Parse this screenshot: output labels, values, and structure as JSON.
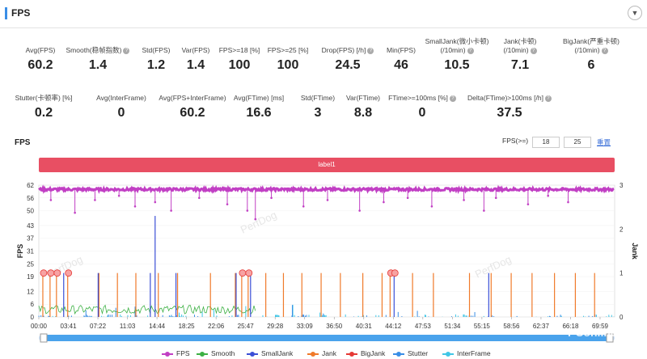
{
  "header": {
    "title": "FPS",
    "collapse_icon": "chevron-down-icon"
  },
  "stats_row1": [
    {
      "label": "Avg(FPS)",
      "value": "60.2",
      "help": false
    },
    {
      "label": "Smooth(稳帧指数)",
      "value": "1.4",
      "help": true
    },
    {
      "label": "Std(FPS)",
      "value": "1.2",
      "help": false
    },
    {
      "label": "Var(FPS)",
      "value": "1.4",
      "help": false
    },
    {
      "label": "FPS>=18 [%]",
      "value": "100",
      "help": false
    },
    {
      "label": "FPS>=25 [%]",
      "value": "100",
      "help": false
    },
    {
      "label": "Drop(FPS) [/h]",
      "value": "24.5",
      "help": true
    },
    {
      "label": "Min(FPS)",
      "value": "46",
      "help": false
    },
    {
      "label": "SmallJank(微小卡顿)",
      "label2": "(/10min)",
      "value": "10.5",
      "help": true
    },
    {
      "label": "Jank(卡顿)",
      "label2": "(/10min)",
      "value": "7.1",
      "help": true
    },
    {
      "label": "BigJank(严重卡顿)",
      "label2": "(/10min)",
      "value": "6",
      "help": true
    }
  ],
  "stats_row2": [
    {
      "label": "Stutter(卡顿率) [%]",
      "value": "0.2",
      "help": false
    },
    {
      "label": "Avg(InterFrame)",
      "value": "0",
      "help": false
    },
    {
      "label": "Avg(FPS+InterFrame)",
      "value": "60.2",
      "help": false
    },
    {
      "label": "Avg(FTime) [ms]",
      "value": "16.6",
      "help": false
    },
    {
      "label": "Std(FTime)",
      "value": "3",
      "help": false
    },
    {
      "label": "Var(FTime)",
      "value": "8.8",
      "help": false
    },
    {
      "label": "FTime>=100ms [%]",
      "value": "0",
      "help": true
    },
    {
      "label": "Delta(FTime)>100ms [/h]",
      "value": "37.5",
      "help": true
    }
  ],
  "chart_controls": {
    "title": "FPS",
    "fps_label": "FPS(>=)",
    "threshold1": "18",
    "threshold2": "25",
    "reset_label": "重置"
  },
  "label_bar": {
    "text": "label1",
    "color": "#e84f63"
  },
  "colors": {
    "fps": "#c13fc4",
    "smooth": "#3cb043",
    "smalljank": "#3b4fd6",
    "jank": "#f07a2a",
    "bigjank": "#e53935",
    "stutter": "#3a8ee6",
    "interframe": "#41c6e6"
  },
  "chart_data": {
    "type": "line",
    "left_axis": {
      "label": "FPS",
      "ticks": [
        "62",
        "56",
        "50",
        "43",
        "37",
        "31",
        "25",
        "19",
        "12",
        "6",
        "0"
      ],
      "ylim": [
        0,
        62
      ]
    },
    "right_axis": {
      "label": "Jank",
      "ticks": [
        "3",
        "2",
        "1",
        "0"
      ],
      "ylim": [
        0,
        3
      ]
    },
    "x_ticks": [
      "00:00",
      "03:41",
      "07:22",
      "11:03",
      "14:44",
      "18:25",
      "22:06",
      "25:47",
      "29:28",
      "33:09",
      "36:50",
      "40:31",
      "44:12",
      "47:53",
      "51:34",
      "55:15",
      "58:56",
      "62:37",
      "66:18",
      "69:59"
    ],
    "series": [
      {
        "name": "FPS",
        "typical": 60,
        "dips": [
          [
            1.5,
            55
          ],
          [
            4.5,
            49
          ],
          [
            7,
            55
          ],
          [
            10,
            57
          ],
          [
            12,
            52
          ],
          [
            14.5,
            54
          ],
          [
            16.5,
            50
          ],
          [
            20,
            56
          ],
          [
            23.5,
            53
          ],
          [
            26,
            50
          ],
          [
            27,
            46
          ],
          [
            29,
            56
          ],
          [
            33,
            52
          ],
          [
            36,
            55
          ],
          [
            40,
            50
          ],
          [
            43,
            54
          ],
          [
            46,
            56
          ],
          [
            49,
            52
          ],
          [
            53,
            55
          ],
          [
            55.5,
            50
          ],
          [
            57,
            56
          ],
          [
            61,
            53
          ],
          [
            63.5,
            57
          ],
          [
            66,
            54
          ]
        ]
      },
      {
        "name": "Smooth",
        "active_until": 27,
        "typical": 3.5
      },
      {
        "name": "SmallJank",
        "spikes": [
          [
            3,
            1
          ],
          [
            7.3,
            1
          ],
          [
            13.8,
            1
          ],
          [
            14.4,
            2.3
          ],
          [
            17,
            1
          ],
          [
            24.5,
            1
          ],
          [
            26.3,
            1
          ],
          [
            44.2,
            1
          ],
          [
            56,
            1
          ]
        ]
      },
      {
        "name": "Jank",
        "spikes": [
          [
            0.5,
            1
          ],
          [
            1.4,
            1
          ],
          [
            2.2,
            1
          ],
          [
            3.6,
            1
          ],
          [
            7.5,
            1
          ],
          [
            9.8,
            1
          ],
          [
            12.1,
            1
          ],
          [
            14.9,
            1
          ],
          [
            17.3,
            1
          ],
          [
            21.4,
            1
          ],
          [
            24.5,
            1
          ],
          [
            25.3,
            1
          ],
          [
            26.1,
            1
          ],
          [
            28.3,
            1
          ],
          [
            30.5,
            1
          ],
          [
            32.8,
            1
          ],
          [
            35.2,
            1
          ],
          [
            37.6,
            1
          ],
          [
            40.4,
            1
          ],
          [
            42.8,
            1
          ],
          [
            43.8,
            1
          ],
          [
            46.6,
            1
          ],
          [
            49.2,
            1
          ],
          [
            53.7,
            1
          ],
          [
            56.4,
            1
          ],
          [
            58.9,
            1
          ],
          [
            61.5,
            1
          ],
          [
            64.3,
            1
          ],
          [
            66.9,
            1
          ],
          [
            69.3,
            1
          ]
        ]
      },
      {
        "name": "BigJank",
        "points": [
          [
            0.6,
            1
          ],
          [
            1.5,
            1
          ],
          [
            2.3,
            1
          ],
          [
            3.7,
            1
          ],
          [
            25.4,
            1
          ],
          [
            26.2,
            1
          ],
          [
            43.9,
            1
          ],
          [
            44.4,
            1
          ]
        ]
      },
      {
        "name": "Stutter",
        "note": "small bars near baseline"
      },
      {
        "name": "InterFrame",
        "note": "small bars near baseline"
      }
    ],
    "xrange_minutes": [
      0,
      71.8
    ]
  },
  "legend": [
    "FPS",
    "Smooth",
    "SmallJank",
    "Jank",
    "BigJank",
    "Stutter",
    "InterFrame"
  ],
  "watermarks": [
    "PerfDog",
    "PerfDog",
    "PerfDog"
  ],
  "footer_brand": "PConline"
}
